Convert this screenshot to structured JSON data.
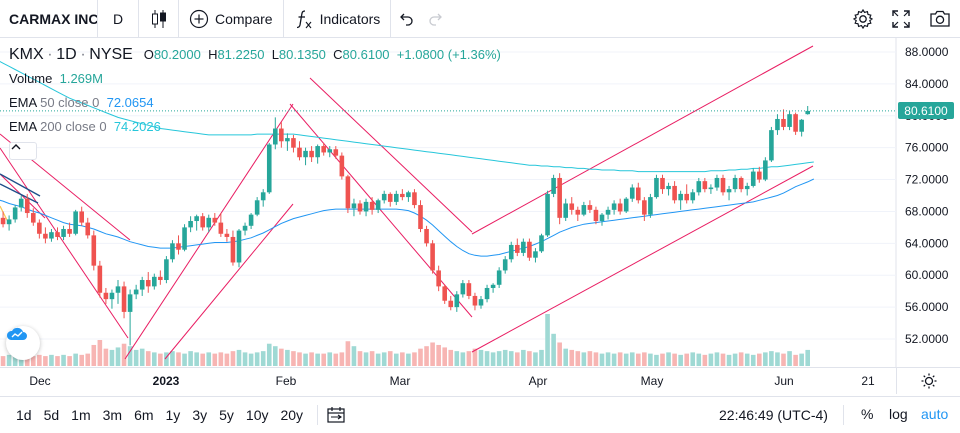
{
  "toolbar": {
    "symbol": "CARMAX INC",
    "interval": "D",
    "compare_label": "Compare",
    "indicators_label": "Indicators"
  },
  "legend": {
    "symbol": "KMX",
    "interval": "1D",
    "exchange": "NYSE",
    "open_label": "O",
    "open": "80.2000",
    "high_label": "H",
    "high": "81.2250",
    "low_label": "L",
    "low": "80.1350",
    "close_label": "C",
    "close": "80.6100",
    "change": "+1.0800 (+1.36%)",
    "volume_label": "Volume",
    "volume": "1.269M",
    "ema50_label": "EMA",
    "ema50_params": "50 close 0",
    "ema50_value": "72.0654",
    "ema200_label": "EMA",
    "ema200_params": "200 close 0",
    "ema200_value": "74.2026"
  },
  "price_axis": {
    "ticks": [
      "88.0000",
      "84.0000",
      "80.0000",
      "76.0000",
      "72.0000",
      "68.0000",
      "64.0000",
      "60.0000",
      "56.0000",
      "52.0000"
    ],
    "current_price": "80.6100"
  },
  "time_axis": {
    "labels": [
      {
        "text": "Dec",
        "bold": false
      },
      {
        "text": "2023",
        "bold": true
      },
      {
        "text": "Feb",
        "bold": false
      },
      {
        "text": "Mar",
        "bold": false
      },
      {
        "text": "Apr",
        "bold": false
      },
      {
        "text": "May",
        "bold": false
      },
      {
        "text": "Jun",
        "bold": false
      },
      {
        "text": "21",
        "bold": false
      }
    ]
  },
  "bottom": {
    "ranges": [
      "1d",
      "5d",
      "1m",
      "3m",
      "6m",
      "1y",
      "3y",
      "5y",
      "10y",
      "20y"
    ],
    "clock": "22:46:49 (UTC-4)",
    "percent": "%",
    "log": "log",
    "auto": "auto"
  },
  "colors": {
    "up": "#26a69a",
    "down": "#ef5350",
    "ema50": "#2196f3",
    "ema200": "#26c6da",
    "channel": "#e91e63",
    "accent": "#2196f3"
  },
  "chart_data": {
    "type": "candlestick",
    "y_axis": {
      "min": 48,
      "max": 90
    },
    "candles": [
      [
        66.8,
        67.6,
        65.8,
        67.2
      ],
      [
        67.2,
        68.0,
        66.0,
        66.4
      ],
      [
        66.4,
        67.5,
        65.6,
        67.0
      ],
      [
        67.0,
        68.8,
        66.6,
        68.5
      ],
      [
        68.5,
        70.0,
        68.0,
        69.6
      ],
      [
        69.6,
        70.2,
        67.2,
        67.8
      ],
      [
        67.8,
        68.4,
        66.2,
        66.6
      ],
      [
        66.6,
        67.0,
        64.6,
        65.2
      ],
      [
        65.2,
        66.0,
        64.0,
        64.6
      ],
      [
        64.6,
        65.8,
        64.2,
        65.4
      ],
      [
        65.4,
        66.0,
        64.4,
        64.8
      ],
      [
        64.8,
        66.2,
        64.4,
        65.8
      ],
      [
        65.8,
        66.6,
        64.8,
        65.2
      ],
      [
        65.2,
        68.2,
        65.0,
        68.0
      ],
      [
        68.0,
        68.6,
        66.2,
        66.6
      ],
      [
        66.6,
        67.2,
        64.6,
        65.0
      ],
      [
        65.0,
        65.6,
        60.6,
        61.2
      ],
      [
        61.2,
        61.8,
        57.2,
        57.8
      ],
      [
        57.8,
        58.4,
        56.4,
        57.0
      ],
      [
        57.0,
        58.2,
        55.8,
        57.8
      ],
      [
        57.8,
        59.4,
        56.4,
        58.6
      ],
      [
        58.6,
        59.2,
        54.6,
        55.4
      ],
      [
        55.4,
        58.2,
        51.2,
        57.6
      ],
      [
        57.6,
        58.8,
        57.0,
        58.2
      ],
      [
        58.2,
        59.8,
        57.4,
        59.4
      ],
      [
        59.4,
        60.4,
        57.8,
        58.6
      ],
      [
        58.6,
        60.2,
        58.2,
        59.8
      ],
      [
        59.8,
        60.6,
        58.8,
        59.4
      ],
      [
        59.4,
        62.4,
        59.0,
        62.0
      ],
      [
        62.0,
        64.4,
        61.6,
        64.0
      ],
      [
        64.0,
        65.0,
        62.6,
        63.2
      ],
      [
        63.2,
        66.4,
        63.0,
        66.0
      ],
      [
        66.0,
        67.4,
        65.4,
        66.8
      ],
      [
        66.8,
        67.6,
        65.6,
        67.4
      ],
      [
        67.4,
        67.8,
        65.6,
        66.0
      ],
      [
        66.0,
        67.6,
        65.4,
        67.2
      ],
      [
        67.2,
        67.8,
        66.2,
        66.6
      ],
      [
        66.6,
        67.8,
        64.8,
        65.2
      ],
      [
        65.2,
        65.8,
        64.2,
        64.8
      ],
      [
        64.8,
        65.6,
        61.2,
        61.6
      ],
      [
        61.6,
        65.8,
        61.0,
        65.6
      ],
      [
        65.6,
        66.6,
        65.0,
        66.2
      ],
      [
        66.2,
        67.8,
        65.8,
        67.6
      ],
      [
        67.6,
        69.8,
        67.4,
        69.4
      ],
      [
        69.4,
        70.8,
        68.6,
        70.4
      ],
      [
        70.4,
        76.6,
        70.2,
        76.4
      ],
      [
        76.4,
        79.8,
        75.8,
        78.4
      ],
      [
        78.4,
        79.2,
        76.0,
        76.8
      ],
      [
        76.8,
        77.8,
        75.6,
        77.2
      ],
      [
        77.2,
        77.6,
        75.4,
        76.0
      ],
      [
        76.0,
        76.8,
        74.4,
        74.8
      ],
      [
        74.8,
        76.0,
        73.8,
        75.6
      ],
      [
        75.6,
        76.2,
        74.2,
        74.8
      ],
      [
        74.8,
        76.4,
        74.0,
        76.2
      ],
      [
        76.2,
        76.6,
        75.0,
        75.4
      ],
      [
        75.4,
        76.2,
        74.8,
        75.8
      ],
      [
        75.8,
        76.2,
        74.6,
        75.0
      ],
      [
        75.0,
        75.4,
        72.0,
        72.4
      ],
      [
        72.4,
        72.6,
        67.8,
        68.4
      ],
      [
        68.4,
        69.6,
        67.4,
        69.0
      ],
      [
        69.0,
        69.4,
        67.6,
        68.0
      ],
      [
        68.0,
        69.6,
        67.4,
        69.2
      ],
      [
        69.2,
        69.8,
        67.6,
        68.2
      ],
      [
        68.2,
        69.6,
        67.8,
        69.4
      ],
      [
        69.4,
        70.6,
        69.0,
        70.2
      ],
      [
        70.2,
        70.4,
        68.6,
        69.2
      ],
      [
        69.2,
        70.6,
        68.8,
        70.2
      ],
      [
        70.2,
        70.8,
        69.4,
        69.8
      ],
      [
        69.8,
        70.6,
        69.2,
        70.4
      ],
      [
        70.4,
        70.8,
        68.4,
        68.8
      ],
      [
        68.8,
        69.4,
        65.4,
        65.8
      ],
      [
        65.8,
        66.2,
        63.6,
        64.0
      ],
      [
        64.0,
        64.4,
        60.2,
        60.6
      ],
      [
        60.6,
        61.2,
        58.0,
        58.6
      ],
      [
        58.6,
        58.8,
        56.4,
        56.8
      ],
      [
        56.8,
        57.4,
        55.6,
        56.0
      ],
      [
        56.0,
        58.0,
        55.4,
        57.6
      ],
      [
        57.6,
        59.4,
        57.2,
        59.0
      ],
      [
        59.0,
        59.4,
        57.0,
        57.4
      ],
      [
        57.4,
        57.8,
        55.6,
        56.2
      ],
      [
        56.2,
        57.4,
        55.8,
        57.0
      ],
      [
        57.0,
        58.8,
        56.6,
        58.4
      ],
      [
        58.4,
        59.0,
        57.8,
        58.8
      ],
      [
        58.8,
        61.0,
        58.4,
        60.6
      ],
      [
        60.6,
        62.4,
        60.2,
        62.0
      ],
      [
        62.0,
        64.2,
        61.6,
        63.8
      ],
      [
        63.8,
        64.6,
        62.4,
        62.8
      ],
      [
        62.8,
        64.6,
        62.4,
        64.2
      ],
      [
        64.2,
        64.6,
        61.8,
        62.2
      ],
      [
        62.2,
        63.4,
        61.6,
        63.0
      ],
      [
        63.0,
        65.2,
        62.8,
        65.0
      ],
      [
        65.0,
        70.6,
        64.8,
        70.2
      ],
      [
        70.2,
        72.6,
        69.8,
        72.2
      ],
      [
        72.2,
        72.8,
        66.4,
        67.2
      ],
      [
        67.2,
        69.6,
        66.8,
        69.0
      ],
      [
        69.0,
        69.8,
        67.6,
        68.2
      ],
      [
        68.2,
        68.6,
        66.8,
        67.6
      ],
      [
        67.6,
        69.2,
        67.4,
        68.8
      ],
      [
        68.8,
        69.4,
        67.8,
        68.2
      ],
      [
        68.2,
        68.6,
        66.4,
        66.8
      ],
      [
        66.8,
        67.8,
        66.2,
        67.6
      ],
      [
        67.6,
        68.6,
        67.0,
        68.2
      ],
      [
        68.2,
        69.4,
        67.6,
        69.0
      ],
      [
        69.0,
        69.6,
        67.6,
        68.0
      ],
      [
        68.0,
        69.8,
        67.8,
        69.6
      ],
      [
        69.6,
        71.4,
        69.2,
        71.0
      ],
      [
        71.0,
        71.6,
        69.0,
        69.4
      ],
      [
        69.4,
        69.8,
        66.8,
        67.6
      ],
      [
        67.6,
        70.2,
        67.2,
        69.8
      ],
      [
        69.8,
        72.6,
        69.6,
        72.2
      ],
      [
        72.2,
        72.6,
        70.2,
        70.8
      ],
      [
        70.8,
        71.6,
        70.0,
        71.2
      ],
      [
        71.2,
        71.8,
        69.0,
        69.4
      ],
      [
        69.4,
        70.6,
        68.2,
        70.2
      ],
      [
        70.2,
        71.4,
        69.0,
        69.4
      ],
      [
        69.4,
        70.8,
        69.0,
        70.4
      ],
      [
        70.4,
        72.2,
        70.0,
        71.8
      ],
      [
        71.8,
        72.2,
        70.4,
        70.8
      ],
      [
        70.8,
        71.4,
        70.2,
        71.0
      ],
      [
        71.0,
        72.6,
        70.6,
        72.2
      ],
      [
        72.2,
        72.6,
        70.0,
        70.4
      ],
      [
        70.4,
        71.2,
        69.4,
        70.8
      ],
      [
        70.8,
        72.6,
        70.4,
        72.2
      ],
      [
        72.2,
        72.4,
        70.4,
        70.8
      ],
      [
        70.8,
        71.6,
        70.0,
        71.2
      ],
      [
        71.2,
        73.4,
        71.0,
        73.0
      ],
      [
        73.0,
        73.6,
        71.6,
        72.0
      ],
      [
        72.0,
        74.8,
        71.8,
        74.4
      ],
      [
        74.4,
        78.6,
        74.2,
        78.2
      ],
      [
        78.2,
        80.2,
        77.6,
        79.6
      ],
      [
        79.6,
        80.8,
        78.2,
        78.6
      ],
      [
        78.6,
        80.6,
        78.2,
        80.2
      ],
      [
        80.2,
        80.4,
        77.6,
        78.0
      ],
      [
        78.0,
        79.6,
        77.4,
        79.5
      ],
      [
        80.2,
        81.225,
        80.135,
        80.61
      ]
    ],
    "volume_max": 4.2,
    "volumes": [
      0.9,
      0.8,
      0.9,
      0.9,
      1.0,
      0.9,
      0.8,
      0.9,
      0.8,
      0.9,
      0.8,
      0.9,
      0.8,
      1.0,
      0.9,
      1.0,
      1.7,
      2.1,
      1.4,
      1.3,
      1.5,
      1.8,
      1.6,
      1.3,
      1.4,
      1.2,
      1.1,
      1.0,
      1.1,
      1.2,
      1.1,
      1.0,
      1.2,
      1.1,
      1.0,
      1.1,
      1.0,
      1.1,
      1.0,
      1.2,
      1.3,
      1.1,
      1.0,
      1.1,
      1.2,
      1.8,
      1.6,
      1.4,
      1.3,
      1.2,
      1.1,
      1.0,
      1.1,
      1.0,
      1.0,
      1.1,
      1.0,
      1.1,
      2.0,
      1.6,
      1.2,
      1.1,
      1.2,
      1.0,
      1.1,
      1.2,
      1.0,
      1.1,
      1.0,
      1.1,
      1.4,
      1.6,
      1.9,
      1.7,
      1.5,
      1.3,
      1.2,
      1.1,
      1.2,
      1.4,
      1.3,
      1.2,
      1.1,
      1.2,
      1.3,
      1.2,
      1.1,
      1.3,
      1.2,
      1.1,
      1.3,
      4.2,
      2.6,
      1.9,
      1.4,
      1.3,
      1.2,
      1.1,
      1.2,
      1.1,
      1.0,
      1.1,
      1.0,
      1.1,
      1.0,
      1.1,
      1.0,
      1.1,
      1.0,
      0.9,
      1.0,
      1.1,
      1.0,
      0.9,
      1.0,
      1.1,
      1.0,
      0.9,
      1.0,
      1.1,
      1.0,
      0.9,
      1.0,
      1.1,
      1.0,
      0.9,
      1.0,
      1.1,
      1.2,
      1.1,
      1.0,
      1.2,
      0.9,
      1.0,
      1.3
    ],
    "ema50": [
      69.5,
      69.3,
      69.0,
      68.8,
      68.6,
      68.3,
      68.0,
      67.8,
      67.5,
      67.2,
      66.9,
      66.6,
      66.4,
      66.3,
      66.2,
      66.0,
      65.8,
      65.5,
      65.2,
      65.0,
      64.8,
      64.5,
      64.2,
      64.0,
      63.8,
      63.6,
      63.5,
      63.4,
      63.4,
      63.4,
      63.5,
      63.6,
      63.7,
      63.8,
      63.9,
      64.0,
      64.1,
      64.1,
      64.1,
      64.2,
      64.3,
      64.5,
      64.7,
      65.0,
      65.3,
      65.7,
      66.1,
      66.5,
      66.8,
      67.1,
      67.3,
      67.5,
      67.7,
      67.9,
      68.1,
      68.2,
      68.3,
      68.3,
      68.3,
      68.3,
      68.3,
      68.3,
      68.3,
      68.3,
      68.3,
      68.3,
      68.3,
      68.2,
      68.1,
      67.8,
      67.4,
      66.9,
      66.3,
      65.6,
      64.9,
      64.2,
      63.6,
      63.1,
      62.7,
      62.5,
      62.4,
      62.4,
      62.5,
      62.6,
      62.8,
      63.0,
      63.2,
      63.4,
      63.6,
      63.9,
      64.2,
      64.6,
      65.0,
      65.4,
      65.7,
      66.0,
      66.2,
      66.4,
      66.5,
      66.6,
      66.7,
      66.8,
      66.9,
      67.0,
      67.1,
      67.2,
      67.3,
      67.4,
      67.5,
      67.6,
      67.7,
      67.8,
      67.9,
      68.0,
      68.1,
      68.2,
      68.3,
      68.4,
      68.5,
      68.6,
      68.7,
      68.8,
      68.9,
      69.0,
      69.1,
      69.2,
      69.4,
      69.6,
      69.8,
      70.0,
      70.3,
      70.7,
      71.1,
      71.4,
      71.7,
      72.0654
    ],
    "ema200": [
      87.0,
      86.6,
      86.2,
      85.8,
      85.4,
      85.0,
      84.6,
      84.2,
      83.8,
      83.4,
      83.0,
      82.6,
      82.2,
      81.9,
      81.6,
      81.3,
      81.0,
      80.7,
      80.4,
      80.1,
      79.8,
      79.6,
      79.4,
      79.2,
      79.0,
      78.8,
      78.6,
      78.4,
      78.3,
      78.2,
      78.1,
      78.0,
      77.9,
      77.8,
      77.7,
      77.6,
      77.6,
      77.6,
      77.6,
      77.6,
      77.6,
      77.6,
      77.6,
      77.7,
      77.7,
      77.7,
      77.7,
      77.7,
      77.7,
      77.7,
      77.6,
      77.5,
      77.4,
      77.3,
      77.2,
      77.1,
      77.0,
      76.9,
      76.8,
      76.7,
      76.6,
      76.5,
      76.4,
      76.3,
      76.2,
      76.1,
      76.0,
      75.9,
      75.8,
      75.7,
      75.6,
      75.5,
      75.4,
      75.3,
      75.2,
      75.1,
      75.0,
      74.9,
      74.8,
      74.7,
      74.6,
      74.5,
      74.4,
      74.3,
      74.2,
      74.1,
      74.0,
      73.9,
      73.8,
      73.8,
      73.7,
      73.7,
      73.6,
      73.6,
      73.5,
      73.5,
      73.4,
      73.4,
      73.3,
      73.3,
      73.2,
      73.2,
      73.2,
      73.1,
      73.1,
      73.1,
      73.0,
      73.0,
      73.0,
      73.0,
      73.0,
      73.0,
      73.0,
      73.0,
      73.0,
      73.0,
      73.0,
      73.0,
      73.1,
      73.1,
      73.1,
      73.2,
      73.2,
      73.3,
      73.3,
      73.4,
      73.4,
      73.5,
      73.6,
      73.6,
      73.7,
      73.8,
      73.9,
      74.0,
      74.1,
      74.2026
    ]
  }
}
